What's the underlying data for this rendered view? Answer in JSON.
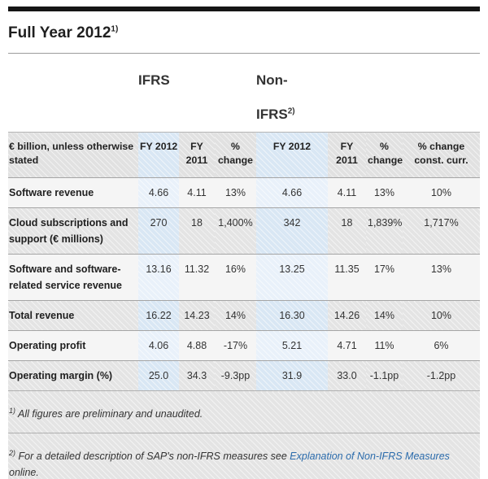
{
  "page": {
    "title": "Full Year 2012",
    "title_superscript": "1)"
  },
  "table": {
    "group_headers": [
      {
        "label": "IFRS",
        "superscript": ""
      },
      {
        "label": "Non-IFRS",
        "superscript": "2)"
      }
    ],
    "columns": {
      "label": "€ billion, unless otherwise stated",
      "c1": "FY 2012",
      "c2": "FY 2011",
      "c3": "% change",
      "c4": "FY 2012",
      "c5": "FY 2011",
      "c6": "% change",
      "c7": "% change const. curr."
    },
    "rows": [
      {
        "label": "Software revenue",
        "values": [
          "4.66",
          "4.11",
          "13%",
          "4.66",
          "4.11",
          "13%",
          "10%"
        ]
      },
      {
        "label": "Cloud subscriptions and support (€ millions)",
        "values": [
          "270",
          "18",
          "1,400%",
          "342",
          "18",
          "1,839%",
          "1,717%"
        ]
      },
      {
        "label": "Software and software-related service revenue",
        "values": [
          "13.16",
          "11.32",
          "16%",
          "13.25",
          "11.35",
          "17%",
          "13%"
        ]
      },
      {
        "label": "Total revenue",
        "values": [
          "16.22",
          "14.23",
          "14%",
          "16.30",
          "14.26",
          "14%",
          "10%"
        ]
      },
      {
        "label": "Operating profit",
        "values": [
          "4.06",
          "4.88",
          "-17%",
          "5.21",
          "4.71",
          "11%",
          "6%"
        ]
      },
      {
        "label": "Operating margin (%)",
        "values": [
          "25.0",
          "34.3",
          "-9.3pp",
          "31.9",
          "33.0",
          "-1.1pp",
          "-1.2pp"
        ]
      }
    ]
  },
  "footnotes": [
    {
      "marker": "1)",
      "text": "All figures are preliminary and unaudited."
    },
    {
      "marker": "2)",
      "text_before_link": "For a detailed description of SAP's non-IFRS measures see ",
      "link_text": "Explanation of Non-IFRS Measures",
      "text_after_link": " online."
    }
  ],
  "colors": {
    "top_bar": "#151515",
    "highlight_column": "#d9e7f4",
    "highlight_column_light_row": "#e9f1fa",
    "row_gray": "#e4e4e4",
    "row_light": "#f5f5f5",
    "header_gray": "#e1e1e1",
    "link_blue": "#2c6cac",
    "text_dark": "#1f1f1f"
  }
}
